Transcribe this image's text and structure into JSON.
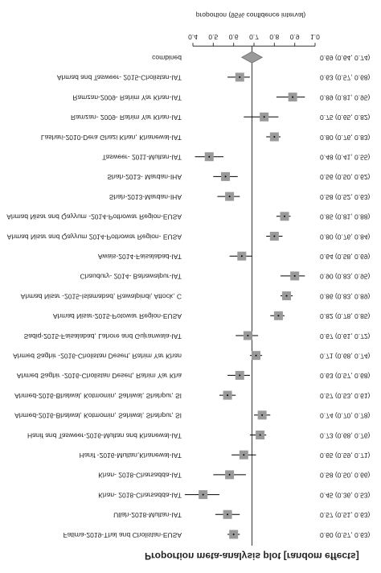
{
  "chart_data": {
    "type": "forest",
    "title": "Proportion meta-analysis plot [random effects]",
    "x_label": "proportion (95% confidence interval)",
    "studies": [
      "Fatima-2019-Thal and Cholistan-EUSA",
      "Ullah-2018-Multan-IAT",
      "Khan- 2018-Charsadda-IAT",
      "Khan- 2018-Charsadda-IAT",
      "Hanif -2016-Multan,Khanewal-IAT",
      "Hanif and Tasweer-2016-Multan and Khanewal-IAT",
      "Ahmed-2016-Bhalwal, Kotmomin, Sahiwal, Shahpur, SI",
      "Ahmed-2016-Bhalwal, Kotmomin, Sahiwal, Shahpur, SI",
      "Ahmed Saghir -2016-Cholistan Desert, Rahim Yar Kha",
      "Ahmed Saghir -2016-Cholistan Desert, Rahim Yar Khan",
      "Sadiq-2015-Faisalabad, Lahore and Gujranwala-IAT",
      "Ahmad Nisar-2015-Potowar Region-EUSA",
      "Ahmad Nisar -2015-Islamabad, Rawalpindi, Attock, C",
      "Chaudury- 2014- Bahawalpur-IAT",
      "Awais-2014-Faisalabad-IAT",
      "Ahmad Nisar and Qayyum 2014-Pothowar Region- EUSA",
      "Ahmad Nisar and Qayyum -2014-Pothowar Region-EUSA",
      "Shah-2013-Mardan-IHA",
      "Shah-2013- Mardan-IHA",
      "Tasweer- 2011-Multan-IAT",
      "Lashari-2010-Dera Ghazi Khan, Khanewal-IAT",
      "Ramzan- 2009- Rahim Yar Khan-IAT",
      "Ramzan-2009- Rahim Yar Khan-IAT",
      "Ahmad and Tasweer- 2015-Cholistan-IAT"
    ],
    "estimates": [
      0.6,
      0.57,
      0.45,
      0.58,
      0.65,
      0.73,
      0.74,
      0.57,
      0.63,
      0.71,
      0.67,
      0.82,
      0.86,
      0.9,
      0.64,
      0.8,
      0.85,
      0.58,
      0.56,
      0.48,
      0.8,
      0.75,
      0.89,
      0.63
    ],
    "lower": [
      0.57,
      0.51,
      0.36,
      0.5,
      0.59,
      0.68,
      0.7,
      0.53,
      0.57,
      0.68,
      0.61,
      0.78,
      0.83,
      0.83,
      0.58,
      0.76,
      0.81,
      0.52,
      0.5,
      0.41,
      0.76,
      0.65,
      0.81,
      0.57
    ],
    "upper": [
      0.63,
      0.63,
      0.53,
      0.66,
      0.71,
      0.76,
      0.78,
      0.61,
      0.68,
      0.74,
      0.72,
      0.85,
      0.89,
      0.95,
      0.69,
      0.84,
      0.88,
      0.63,
      0.62,
      0.55,
      0.83,
      0.82,
      0.95,
      0.68
    ],
    "ci_labels": [
      "0.60 (0.57, 0.63)",
      "0.57 (0.51, 0.63)",
      "0.45 (0.36, 0.53)",
      "0.58 (0.50, 0.66)",
      "0.65 (0.59, 0.71)",
      "0.73 (0.68, 0.76)",
      "0.74 (0.70, 0.78)",
      "0.57 (0.53, 0.61)",
      "0.63 (0.57, 0.68)",
      "0.71 (0.68, 0.74)",
      "0.67 (0.61, 0.72)",
      "0.82 (0.78, 0.85)",
      "0.86 (0.83, 0.89)",
      "0.90 (0.83, 0.95)",
      "0.64 (0.58, 0.69)",
      "0.80 (0.76, 0.84)",
      "0.85 (0.81, 0.88)",
      "0.58 (0.52, 0.63)",
      "0.56 (0.50, 0.62)",
      "0.48 (0.41, 0.55)",
      "0.80 (0.76, 0.83)",
      "0.75 (0.65, 0.82)",
      "0.89 (0.81, 0.95)",
      "0.63 (0.57, 0.68)"
    ],
    "combined": {
      "label": "combined",
      "estimate": 0.69,
      "lower": 0.64,
      "upper": 0.74,
      "ci_label": "0.69 (0.64, 0.74)"
    },
    "xlim": [
      0.4,
      1.0
    ],
    "xticks": [
      0.4,
      0.5,
      0.6,
      0.7,
      0.8,
      0.9,
      {
        "value": 1,
        "label": "1.0"
      }
    ],
    "color": "#9a9a9a"
  }
}
